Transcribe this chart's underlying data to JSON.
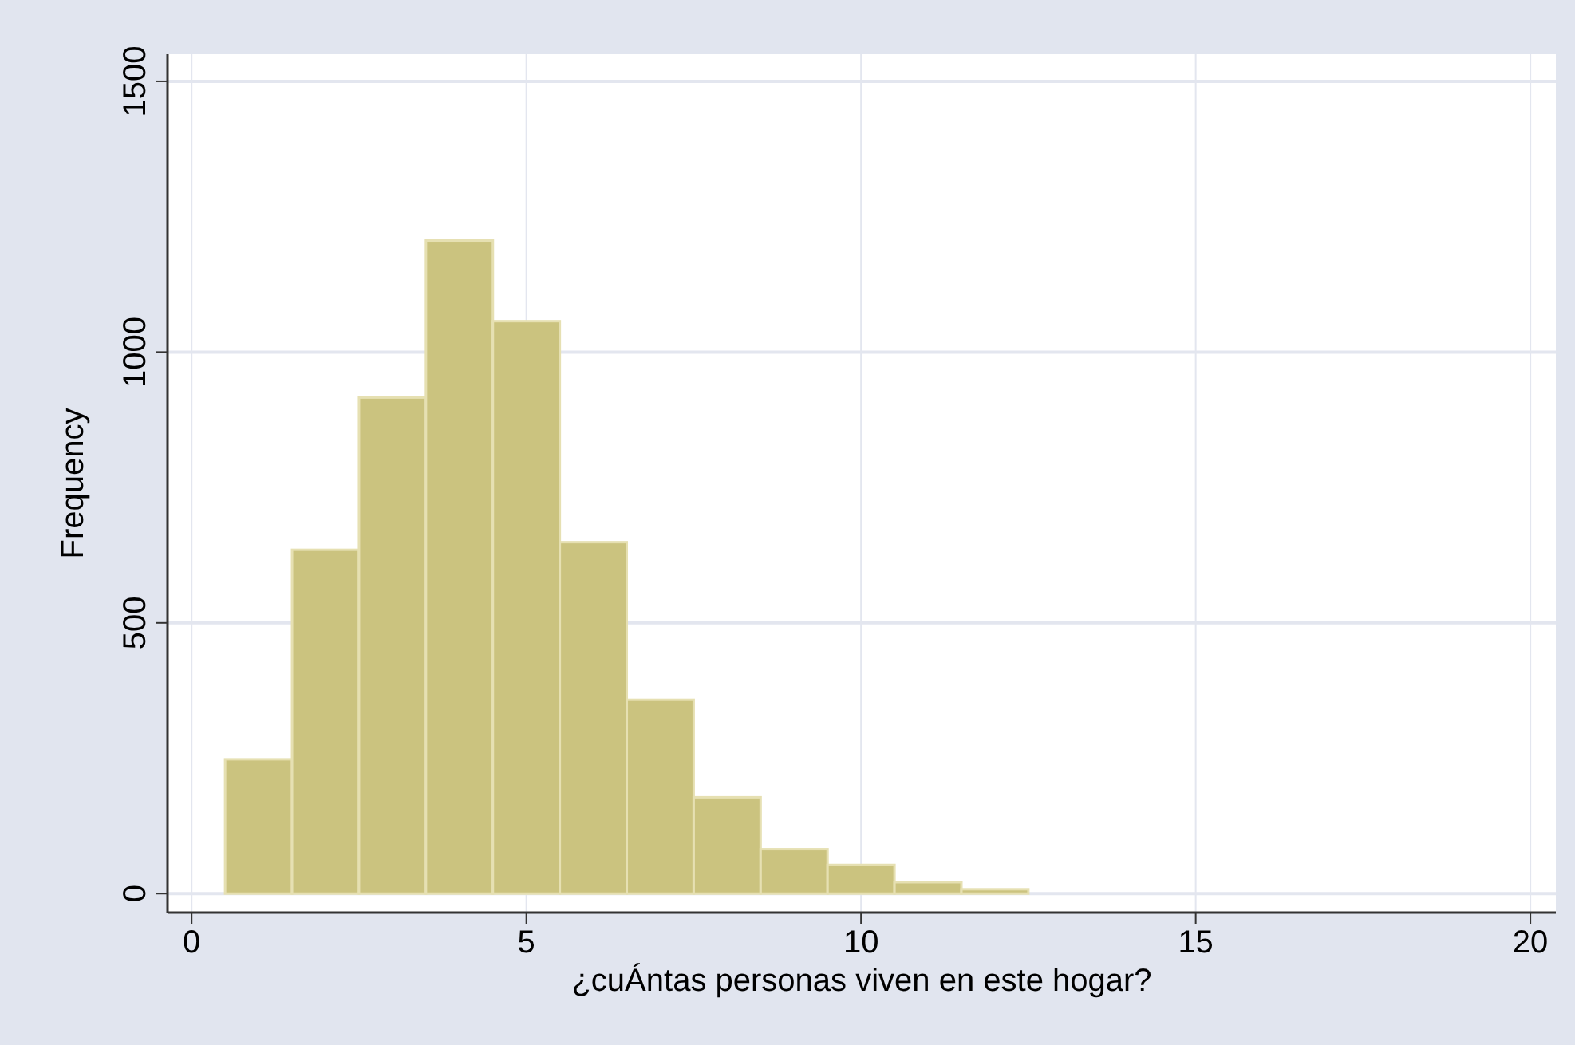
{
  "chart_data": {
    "type": "histogram",
    "xlabel": "¿cuÁntas personas viven en este hogar?",
    "ylabel": "Frequency",
    "bins": [
      0.5,
      1.5,
      2.5,
      3.5,
      4.5,
      5.5,
      6.5,
      7.5,
      8.5,
      9.5,
      10.5,
      11.5,
      12.5
    ],
    "values": [
      248,
      635,
      916,
      1206,
      1057,
      649,
      358,
      178,
      82,
      53,
      21,
      8
    ],
    "color": "#cbc37f",
    "xlim": [
      -0.36,
      20.38
    ],
    "xticks": [
      0,
      5,
      10,
      15,
      20
    ],
    "ylim": [
      -35,
      1550
    ],
    "yticks": [
      0,
      500,
      1000,
      1500
    ],
    "grid": true
  }
}
